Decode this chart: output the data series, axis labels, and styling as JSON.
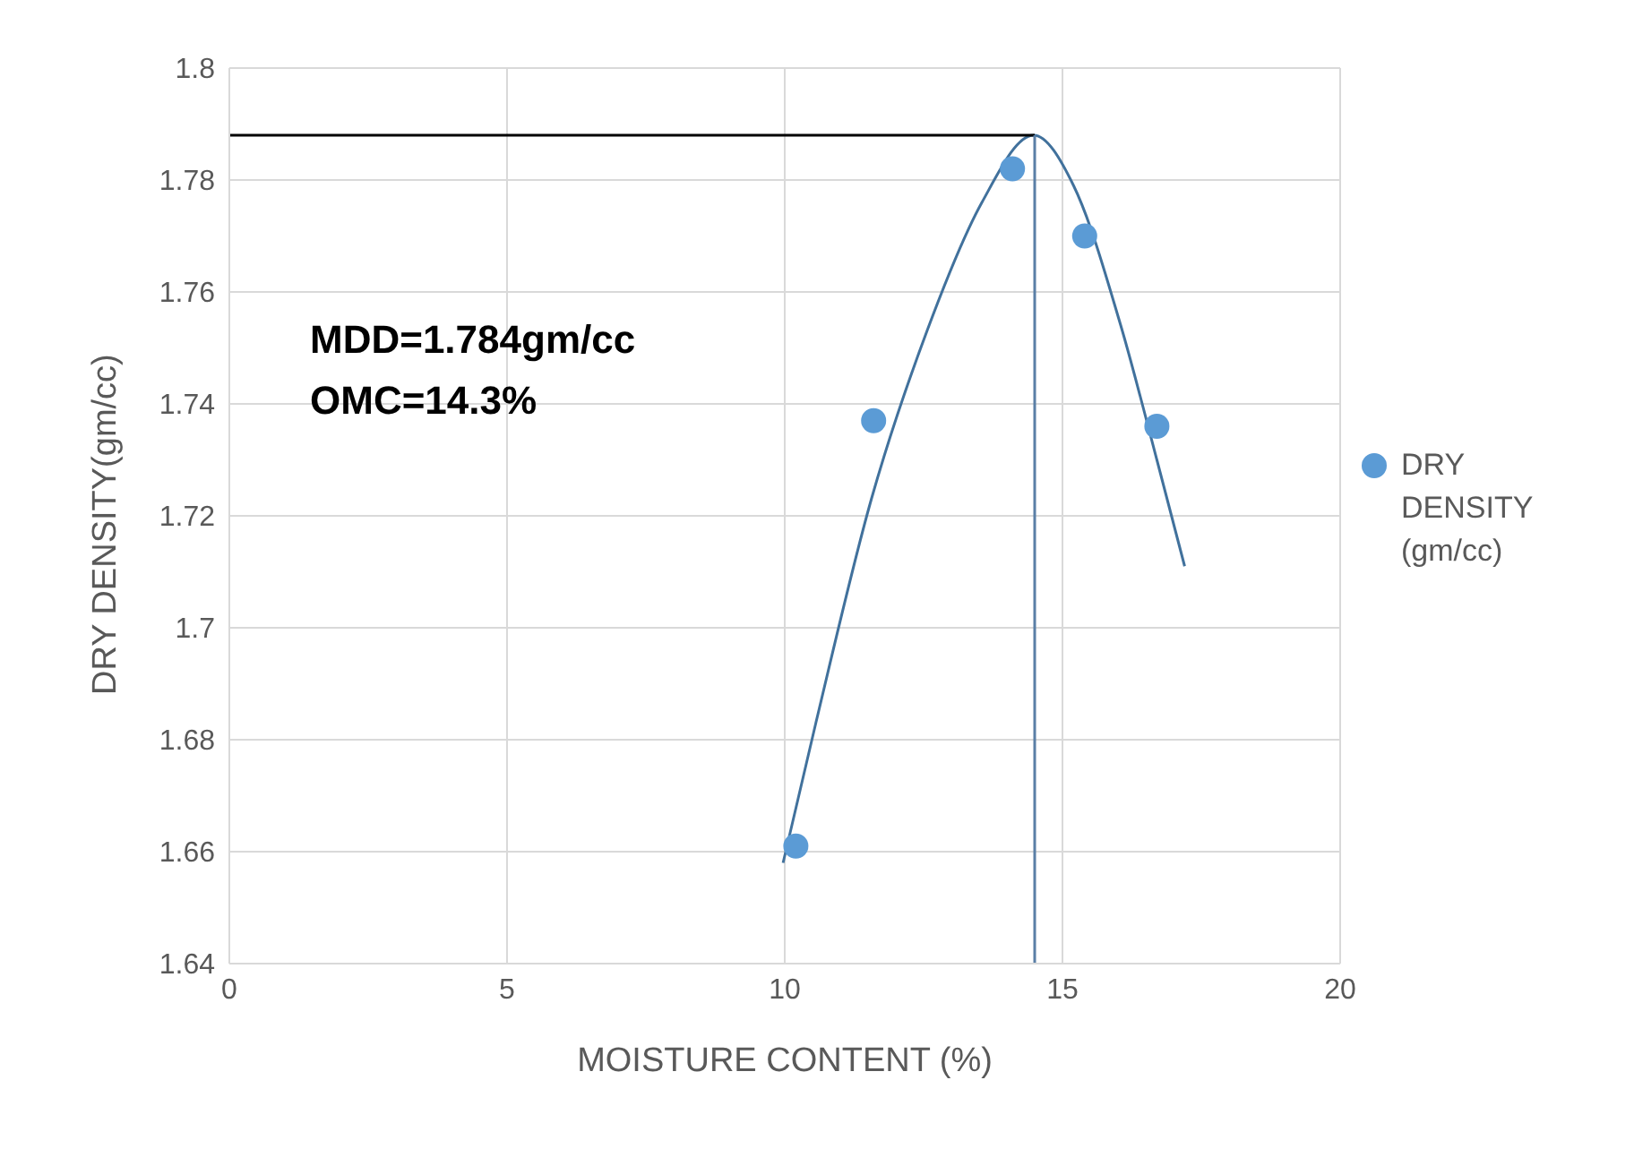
{
  "chart_data": {
    "type": "scatter",
    "xlabel": "MOISTURE CONTENT (%)",
    "ylabel": "DRY DENSITY(gm/cc)",
    "xlim": [
      0,
      20
    ],
    "xticks": [
      0,
      5,
      10,
      15,
      20
    ],
    "ylim": [
      1.64,
      1.8
    ],
    "yticks": [
      1.64,
      1.66,
      1.68,
      1.7,
      1.72,
      1.74,
      1.76,
      1.78,
      1.8
    ],
    "grid": true,
    "legend": "right",
    "marker": "circle",
    "annotations": [
      "MDD=1.784gm/cc",
      "OMC=14.3%"
    ],
    "series": [
      {
        "name": "DRY DENSITY (gm/cc)",
        "color": "#5b9bd5",
        "x": [
          10.2,
          11.6,
          14.1,
          15.4,
          16.7
        ],
        "values": [
          1.661,
          1.737,
          1.782,
          1.77,
          1.736
        ]
      },
      {
        "type": "line",
        "color": "#41719c",
        "marker": "none",
        "x": [
          9.97,
          10.56,
          11.56,
          12.56,
          13.55,
          14.48,
          15.2,
          16.05,
          16.7,
          17.2
        ],
        "values": [
          1.658,
          1.683,
          1.723,
          1.753,
          1.776,
          1.788,
          1.779,
          1.754,
          1.73,
          1.711
        ]
      },
      {
        "type": "line",
        "color": "#000000",
        "marker": "none",
        "x": [
          0,
          14.5
        ],
        "values": [
          1.788,
          1.788
        ]
      },
      {
        "type": "line",
        "color": "#5a7fa6",
        "marker": "none",
        "x": [
          14.5,
          14.5
        ],
        "values": [
          1.64,
          1.788
        ]
      }
    ]
  }
}
